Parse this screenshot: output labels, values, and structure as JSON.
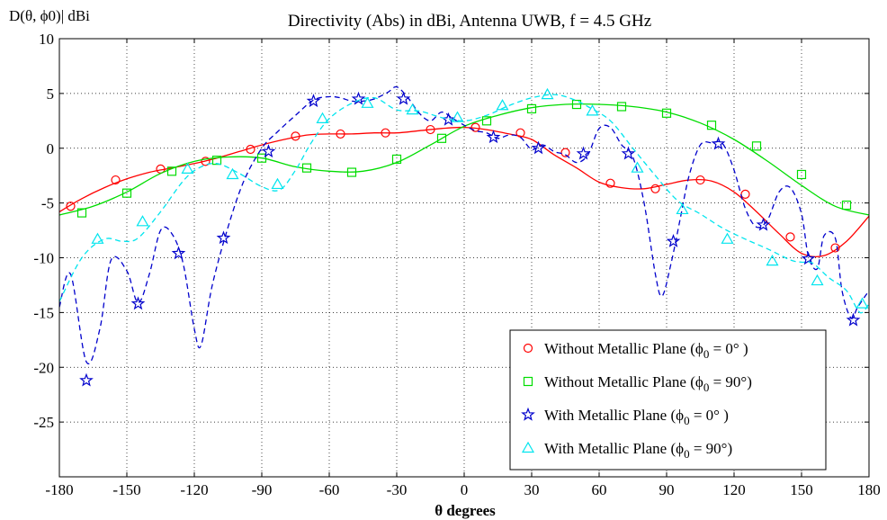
{
  "chart_data": {
    "type": "line",
    "title": "Directivity (Abs) in dBi, Antenna UWB, f = 4.5 GHz",
    "ylabel": "D(θ, ϕ0)| dBi",
    "xlabel": "θ degrees",
    "xlim": [
      -180,
      180
    ],
    "ylim": [
      -30,
      10
    ],
    "xticks": [
      -180,
      -150,
      -120,
      -90,
      -60,
      -30,
      0,
      30,
      60,
      90,
      120,
      150,
      180
    ],
    "yticks": [
      10,
      5,
      0,
      -5,
      -10,
      -15,
      -20,
      -25
    ],
    "x_tick_labels": [
      "-180",
      "-150",
      "-120",
      "-90",
      "-60",
      "-30",
      "0",
      "30",
      "60",
      "90",
      "120",
      "150",
      "180"
    ],
    "y_tick_labels": [
      "10",
      "5",
      "0",
      "-5",
      "-10",
      "-15",
      "-20",
      "-25"
    ],
    "grid": true,
    "legend_position": "bottom-right",
    "series": [
      {
        "name": "Without Metallic Plane (ϕ0 = 0° )",
        "color": "#ff0000",
        "marker": "circle",
        "line_style": "solid",
        "x": [
          -180,
          -170,
          -160,
          -150,
          -140,
          -130,
          -120,
          -110,
          -100,
          -90,
          -80,
          -70,
          -60,
          -50,
          -40,
          -30,
          -20,
          -10,
          0,
          10,
          20,
          30,
          40,
          50,
          60,
          70,
          80,
          90,
          100,
          110,
          120,
          130,
          140,
          150,
          160,
          170,
          180
        ],
        "y": [
          -5.8,
          -4.6,
          -3.6,
          -2.8,
          -2.2,
          -1.8,
          -1.4,
          -0.9,
          -0.3,
          0.3,
          0.8,
          1.2,
          1.3,
          1.3,
          1.4,
          1.4,
          1.6,
          1.8,
          1.9,
          1.7,
          1.3,
          0.8,
          -0.6,
          -1.8,
          -3.1,
          -3.6,
          -3.7,
          -3.3,
          -2.9,
          -3.0,
          -4.0,
          -5.8,
          -7.8,
          -9.6,
          -9.8,
          -8.5,
          -6.2
        ],
        "marker_x": [
          -175,
          -155,
          -135,
          -115,
          -95,
          -75,
          -55,
          -35,
          -15,
          5,
          25,
          45,
          65,
          85,
          105,
          125,
          145,
          165
        ],
        "marker_y": [
          -5.3,
          -2.9,
          -1.9,
          -1.2,
          -0.1,
          1.1,
          1.3,
          1.4,
          1.7,
          1.9,
          1.4,
          -0.4,
          -3.2,
          -3.7,
          -2.9,
          -4.2,
          -8.1,
          -9.1
        ]
      },
      {
        "name": "Without Metallic Plane (ϕ0 = 90°)",
        "color": "#00dd00",
        "marker": "square",
        "line_style": "solid",
        "x": [
          -180,
          -165,
          -150,
          -135,
          -120,
          -105,
          -90,
          -75,
          -60,
          -45,
          -30,
          -15,
          0,
          15,
          30,
          45,
          60,
          75,
          90,
          105,
          120,
          135,
          150,
          165,
          180
        ],
        "y": [
          -6.1,
          -5.3,
          -4.0,
          -2.3,
          -1.2,
          -0.8,
          -0.9,
          -1.7,
          -2.1,
          -2.1,
          -1.3,
          0.3,
          2.0,
          3.0,
          3.7,
          4.0,
          4.0,
          3.8,
          3.3,
          2.3,
          0.8,
          -1.2,
          -3.4,
          -5.3,
          -6.1
        ],
        "marker_x": [
          -170,
          -150,
          -130,
          -110,
          -90,
          -70,
          -50,
          -30,
          -10,
          10,
          30,
          50,
          70,
          90,
          110,
          130,
          150,
          170
        ],
        "marker_y": [
          -5.9,
          -4.1,
          -2.1,
          -1.1,
          -0.9,
          -1.8,
          -2.2,
          -1.0,
          0.9,
          2.5,
          3.6,
          4.0,
          3.8,
          3.2,
          2.1,
          0.2,
          -2.4,
          -5.2
        ]
      },
      {
        "name": "With Metallic Plane    (ϕ0 = 0° )",
        "color": "#0000cc",
        "marker": "star",
        "line_style": "dashed",
        "x": [
          -180,
          -175,
          -168,
          -162,
          -157,
          -150,
          -145,
          -140,
          -135,
          -130,
          -125,
          -120,
          -117,
          -112,
          -105,
          -98,
          -90,
          -83,
          -75,
          -67,
          -60,
          -55,
          -50,
          -45,
          -40,
          -34,
          -30,
          -25,
          -20,
          -15,
          -10,
          -5,
          0,
          5,
          10,
          15,
          20,
          25,
          30,
          35,
          40,
          45,
          50,
          55,
          60,
          65,
          70,
          75,
          80,
          85,
          88,
          92,
          96,
          100,
          105,
          110,
          115,
          120,
          125,
          130,
          135,
          140,
          145,
          150,
          153,
          157,
          160,
          165,
          168,
          172,
          175,
          180
        ],
        "y": [
          -14.5,
          -11.5,
          -19.5,
          -16.5,
          -10.2,
          -11.2,
          -14.1,
          -11.5,
          -7.5,
          -7.8,
          -10.5,
          -16.5,
          -18.0,
          -12.5,
          -7.2,
          -3.0,
          0.0,
          1.5,
          3.0,
          4.4,
          4.7,
          4.6,
          4.3,
          4.3,
          4.5,
          5.1,
          5.6,
          4.6,
          3.2,
          2.5,
          3.3,
          2.7,
          2.1,
          1.6,
          1.4,
          0.9,
          1.2,
          1.0,
          -0.1,
          0.3,
          -0.3,
          -0.6,
          -1.3,
          -0.6,
          1.8,
          1.9,
          0.3,
          -0.8,
          -5.0,
          -11.5,
          -13.5,
          -10.5,
          -6.5,
          -2.5,
          0.3,
          0.5,
          0.4,
          -2.0,
          -5.5,
          -7.2,
          -6.5,
          -4.0,
          -3.6,
          -6.0,
          -9.8,
          -11.0,
          -8.0,
          -8.2,
          -13.0,
          -15.5,
          -14.5,
          -13.0
        ],
        "marker_x": [
          -168,
          -145,
          -127,
          -107,
          -87,
          -67,
          -47,
          -27,
          -7,
          13,
          33,
          53,
          73,
          93,
          113,
          133,
          153,
          173
        ],
        "marker_y": [
          -21.2,
          -14.2,
          -9.6,
          -8.2,
          -0.3,
          4.3,
          4.5,
          4.5,
          2.6,
          1.0,
          0.0,
          -0.5,
          -0.5,
          -8.5,
          0.4,
          -7.0,
          -10.1,
          -15.7
        ]
      },
      {
        "name": "With Metallic Plane   (ϕ0 = 90°)",
        "color": "#00e5ee",
        "marker": "triangle",
        "line_style": "dashed",
        "x": [
          -180,
          -170,
          -160,
          -152,
          -145,
          -135,
          -125,
          -118,
          -110,
          -100,
          -90,
          -82,
          -75,
          -68,
          -60,
          -50,
          -40,
          -30,
          -20,
          -10,
          0,
          10,
          20,
          30,
          40,
          48,
          55,
          65,
          75,
          85,
          95,
          105,
          115,
          125,
          135,
          145,
          150,
          155,
          162,
          170,
          176,
          180
        ],
        "y": [
          -14.0,
          -10.0,
          -8.3,
          -8.5,
          -8.2,
          -5.8,
          -3.0,
          -1.8,
          -1.4,
          -2.3,
          -3.5,
          -3.8,
          -2.0,
          0.5,
          2.7,
          4.1,
          4.6,
          3.5,
          3.4,
          2.8,
          2.5,
          3.0,
          3.9,
          4.6,
          4.9,
          4.5,
          3.8,
          2.5,
          0.0,
          -2.5,
          -4.8,
          -6.0,
          -7.3,
          -8.3,
          -9.2,
          -10.2,
          -10.4,
          -10.5,
          -11.8,
          -13.0,
          -15.0,
          -14.2
        ],
        "marker_x": [
          -163,
          -143,
          -123,
          -103,
          -83,
          -63,
          -43,
          -23,
          -3,
          17,
          37,
          57,
          77,
          97,
          117,
          137,
          157,
          177
        ],
        "marker_y": [
          -8.3,
          -6.7,
          -1.9,
          -2.4,
          -3.3,
          2.7,
          4.1,
          3.5,
          2.8,
          3.9,
          4.9,
          3.4,
          -1.8,
          -5.6,
          -8.3,
          -10.3,
          -12.1,
          -14.2
        ]
      }
    ]
  }
}
